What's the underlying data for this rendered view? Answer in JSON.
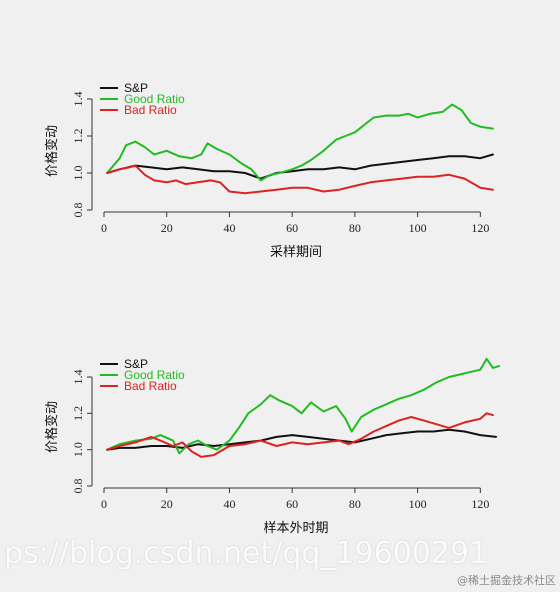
{
  "chart_data": [
    {
      "type": "line",
      "xlabel": "采样期间",
      "ylabel": "价格变动",
      "xlim": [
        0,
        125
      ],
      "ylim": [
        0.8,
        1.45
      ],
      "xticks": [
        0,
        20,
        40,
        60,
        80,
        100,
        120
      ],
      "yticks": [
        0.8,
        1.0,
        1.2,
        1.4
      ],
      "grid": false,
      "legend": "top-left",
      "series": [
        {
          "name": "S&P",
          "color": "#111111",
          "x": [
            1,
            5,
            10,
            15,
            20,
            25,
            30,
            35,
            40,
            45,
            50,
            55,
            60,
            65,
            70,
            75,
            80,
            85,
            90,
            95,
            100,
            105,
            110,
            115,
            120,
            124
          ],
          "y": [
            1.0,
            1.02,
            1.04,
            1.03,
            1.02,
            1.03,
            1.02,
            1.01,
            1.01,
            1.0,
            0.97,
            1.0,
            1.01,
            1.02,
            1.02,
            1.03,
            1.02,
            1.04,
            1.05,
            1.06,
            1.07,
            1.08,
            1.09,
            1.09,
            1.08,
            1.1
          ]
        },
        {
          "name": "Good Ratio",
          "color": "#22bb22",
          "x": [
            1,
            5,
            7,
            10,
            13,
            16,
            20,
            24,
            28,
            31,
            33,
            36,
            40,
            44,
            47,
            50,
            53,
            56,
            60,
            63,
            66,
            70,
            74,
            77,
            80,
            83,
            86,
            90,
            94,
            97,
            100,
            104,
            108,
            111,
            114,
            117,
            120,
            124
          ],
          "y": [
            1.0,
            1.08,
            1.15,
            1.17,
            1.14,
            1.1,
            1.12,
            1.09,
            1.08,
            1.1,
            1.16,
            1.13,
            1.1,
            1.05,
            1.02,
            0.96,
            0.99,
            1.0,
            1.02,
            1.04,
            1.07,
            1.12,
            1.18,
            1.2,
            1.22,
            1.26,
            1.3,
            1.31,
            1.31,
            1.32,
            1.3,
            1.32,
            1.33,
            1.37,
            1.34,
            1.27,
            1.25,
            1.24
          ]
        },
        {
          "name": "Bad Ratio",
          "color": "#dd2222",
          "x": [
            1,
            5,
            8,
            10,
            13,
            16,
            20,
            23,
            26,
            30,
            34,
            37,
            40,
            45,
            50,
            55,
            60,
            65,
            70,
            75,
            80,
            85,
            90,
            95,
            100,
            105,
            110,
            115,
            120,
            124
          ],
          "y": [
            1.0,
            1.02,
            1.03,
            1.04,
            0.99,
            0.96,
            0.95,
            0.96,
            0.94,
            0.95,
            0.96,
            0.95,
            0.9,
            0.89,
            0.9,
            0.91,
            0.92,
            0.92,
            0.9,
            0.91,
            0.93,
            0.95,
            0.96,
            0.97,
            0.98,
            0.98,
            0.99,
            0.97,
            0.92,
            0.91
          ]
        }
      ]
    },
    {
      "type": "line",
      "xlabel": "样本外时期",
      "ylabel": "价格变动",
      "xlim": [
        0,
        125
      ],
      "ylim": [
        0.8,
        1.5
      ],
      "xticks": [
        0,
        20,
        40,
        60,
        80,
        100,
        120
      ],
      "yticks": [
        0.8,
        1.0,
        1.2,
        1.4
      ],
      "grid": false,
      "legend": "top-left",
      "series": [
        {
          "name": "S&P",
          "color": "#111111",
          "x": [
            1,
            5,
            10,
            15,
            20,
            25,
            30,
            35,
            40,
            45,
            50,
            55,
            60,
            65,
            70,
            75,
            80,
            85,
            90,
            95,
            100,
            105,
            110,
            115,
            120,
            125
          ],
          "y": [
            1.0,
            1.01,
            1.01,
            1.02,
            1.02,
            1.01,
            1.03,
            1.02,
            1.03,
            1.04,
            1.05,
            1.07,
            1.08,
            1.07,
            1.06,
            1.05,
            1.04,
            1.06,
            1.08,
            1.09,
            1.1,
            1.1,
            1.11,
            1.1,
            1.08,
            1.07
          ]
        },
        {
          "name": "Good Ratio",
          "color": "#22bb22",
          "x": [
            1,
            5,
            10,
            15,
            18,
            22,
            24,
            27,
            30,
            33,
            36,
            40,
            43,
            46,
            50,
            53,
            56,
            60,
            63,
            66,
            70,
            74,
            77,
            79,
            82,
            86,
            90,
            94,
            98,
            102,
            106,
            110,
            115,
            120,
            122,
            124,
            126
          ],
          "y": [
            1.0,
            1.03,
            1.05,
            1.06,
            1.08,
            1.05,
            0.98,
            1.03,
            1.05,
            1.02,
            1.0,
            1.05,
            1.12,
            1.2,
            1.25,
            1.3,
            1.27,
            1.24,
            1.2,
            1.26,
            1.21,
            1.24,
            1.17,
            1.1,
            1.18,
            1.22,
            1.25,
            1.28,
            1.3,
            1.33,
            1.37,
            1.4,
            1.42,
            1.44,
            1.5,
            1.45,
            1.46
          ]
        },
        {
          "name": "Bad Ratio",
          "color": "#dd2222",
          "x": [
            1,
            5,
            10,
            15,
            18,
            22,
            25,
            28,
            31,
            35,
            40,
            45,
            50,
            55,
            60,
            65,
            70,
            75,
            78,
            82,
            86,
            90,
            94,
            98,
            102,
            106,
            110,
            115,
            120,
            122,
            124
          ],
          "y": [
            1.0,
            1.02,
            1.04,
            1.07,
            1.05,
            1.02,
            1.04,
            0.99,
            0.96,
            0.97,
            1.02,
            1.03,
            1.05,
            1.02,
            1.04,
            1.03,
            1.04,
            1.05,
            1.03,
            1.06,
            1.1,
            1.13,
            1.16,
            1.18,
            1.16,
            1.14,
            1.12,
            1.15,
            1.17,
            1.2,
            1.19
          ]
        }
      ]
    }
  ],
  "watermark": {
    "url_text": "ps://blog.csdn.net/qq_19600291",
    "site_text": "@稀土掘金技术社区"
  }
}
